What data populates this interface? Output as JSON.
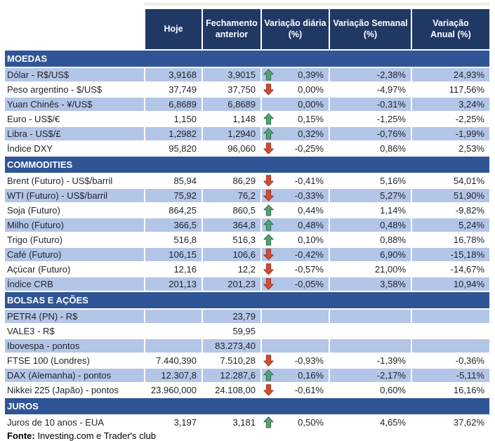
{
  "colors": {
    "header_bg": "#1F3864",
    "section_bg": "#2F5597",
    "stripe_bg": "#B4C6E7",
    "text": "#1d2129",
    "topline": "#f1ebe9",
    "arrow_up_fill": "#56A075",
    "arrow_up_stroke": "#2E6B4E",
    "arrow_down_fill": "#CD4F35",
    "arrow_down_stroke": "#9A3721"
  },
  "header": {
    "columns": [
      "Hoje",
      "Fechamento\nanterior",
      "Variação diária\n(%)",
      "Variação Semanal\n(%)",
      "Variação\nAnual (%)"
    ]
  },
  "sections": [
    {
      "title": "MOEDAS",
      "rows": [
        {
          "label": "Dólar - R$/US$",
          "hoje": "3,9168",
          "fechamento": "3,9015",
          "arrow": "up",
          "var_diaria": "0,39%",
          "var_semanal": "-2,38%",
          "var_anual": "24,93%"
        },
        {
          "label": "Peso argentino - $/US$",
          "hoje": "37,749",
          "fechamento": "37,750",
          "arrow": "down",
          "var_diaria": "0,00%",
          "var_semanal": "-4,97%",
          "var_anual": "117,56%"
        },
        {
          "label": "Yuan Chinês - ¥/US$",
          "hoje": "6,8689",
          "fechamento": "6,8689",
          "arrow": "",
          "var_diaria": "0,00%",
          "var_semanal": "-0,31%",
          "var_anual": "3,24%"
        },
        {
          "label": "Euro - US$/€",
          "hoje": "1,150",
          "fechamento": "1,148",
          "arrow": "up",
          "var_diaria": "0,15%",
          "var_semanal": "-1,25%",
          "var_anual": "-2,25%"
        },
        {
          "label": "Libra - US$/£",
          "hoje": "1,2982",
          "fechamento": "1,2940",
          "arrow": "up",
          "var_diaria": "0,32%",
          "var_semanal": "-0,76%",
          "var_anual": "-1,99%"
        },
        {
          "label": "Índice DXY",
          "hoje": "95,820",
          "fechamento": "96,060",
          "arrow": "down",
          "var_diaria": "-0,25%",
          "var_semanal": "0,86%",
          "var_anual": "2,53%"
        }
      ]
    },
    {
      "title": "COMMODITIES",
      "rows": [
        {
          "label": "Brent (Futuro) - US$/barril",
          "hoje": "85,94",
          "fechamento": "86,29",
          "arrow": "down",
          "var_diaria": "-0,41%",
          "var_semanal": "5,16%",
          "var_anual": "54,01%"
        },
        {
          "label": "WTI (Futuro) - US$/barril",
          "hoje": "75,92",
          "fechamento": "76,2",
          "arrow": "down",
          "var_diaria": "-0,33%",
          "var_semanal": "5,27%",
          "var_anual": "51,90%"
        },
        {
          "label": "Soja (Futuro)",
          "hoje": "864,25",
          "fechamento": "860,5",
          "arrow": "up",
          "var_diaria": "0,44%",
          "var_semanal": "1,14%",
          "var_anual": "-9,82%"
        },
        {
          "label": "Milho (Futuro)",
          "hoje": "366,5",
          "fechamento": "364,8",
          "arrow": "up",
          "var_diaria": "0,48%",
          "var_semanal": "0,48%",
          "var_anual": "5,24%"
        },
        {
          "label": "Trigo (Futuro)",
          "hoje": "516,8",
          "fechamento": "516,3",
          "arrow": "up",
          "var_diaria": "0,10%",
          "var_semanal": "0,88%",
          "var_anual": "16,78%"
        },
        {
          "label": "Café (Futuro)",
          "hoje": "106,15",
          "fechamento": "106,6",
          "arrow": "down",
          "var_diaria": "-0,42%",
          "var_semanal": "6,90%",
          "var_anual": "-15,18%"
        },
        {
          "label": "Açúcar (Futuro)",
          "hoje": "12,16",
          "fechamento": "12,2",
          "arrow": "down",
          "var_diaria": "-0,57%",
          "var_semanal": "21,00%",
          "var_anual": "-14,67%"
        },
        {
          "label": "Índice CRB",
          "hoje": "201,13",
          "fechamento": "201,23",
          "arrow": "down",
          "var_diaria": "-0,05%",
          "var_semanal": "3,58%",
          "var_anual": "10,94%"
        }
      ]
    },
    {
      "title": "BOLSAS E AÇÕES",
      "rows": [
        {
          "label": "PETR4 (PN) - R$",
          "hoje": "",
          "fechamento": "23,79",
          "arrow": "",
          "var_diaria": "",
          "var_semanal": "",
          "var_anual": ""
        },
        {
          "label": "VALE3 - R$",
          "hoje": "",
          "fechamento": "59,95",
          "arrow": "",
          "var_diaria": "",
          "var_semanal": "",
          "var_anual": ""
        },
        {
          "label": "Ibovespa - pontos",
          "hoje": "",
          "fechamento": "83.273,40",
          "arrow": "",
          "var_diaria": "",
          "var_semanal": "",
          "var_anual": ""
        },
        {
          "label": "FTSE 100 (Londres)",
          "hoje": "7.440,390",
          "fechamento": "7.510,28",
          "arrow": "down",
          "var_diaria": "-0,93%",
          "var_semanal": "-1,39%",
          "var_anual": "-0,36%"
        },
        {
          "label": "DAX (Alemanha) - pontos",
          "hoje": "12.307,8",
          "fechamento": "12.287,6",
          "arrow": "up",
          "var_diaria": "0,16%",
          "var_semanal": "-2,17%",
          "var_anual": "-5,11%"
        },
        {
          "label": "Nikkei 225 (Japão) - pontos",
          "hoje": "23.960,000",
          "fechamento": "24.108,00",
          "arrow": "down",
          "var_diaria": "-0,61%",
          "var_semanal": "0,60%",
          "var_anual": "16,16%"
        }
      ]
    },
    {
      "title": "JUROS",
      "rows": [
        {
          "label": "Juros de 10 anos - EUA",
          "hoje": "3,197",
          "fechamento": "3,181",
          "arrow": "up",
          "var_diaria": "0,50%",
          "var_semanal": "4,65%",
          "var_anual": "37,62%"
        }
      ]
    }
  ],
  "footer": {
    "label": "Fonte:",
    "text": " Investing.com e Trader's club"
  }
}
